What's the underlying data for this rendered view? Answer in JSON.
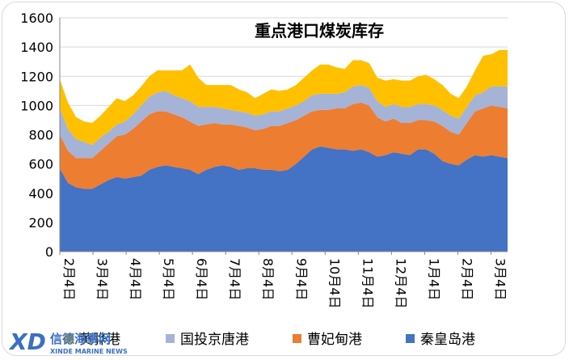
{
  "chart_data": {
    "type": "area",
    "stacked": true,
    "title": "重点港口煤炭库存",
    "ylim": [
      0,
      1600
    ],
    "yticks": [
      0,
      200,
      400,
      600,
      800,
      1000,
      1200,
      1400,
      1600
    ],
    "x_tick_labels": [
      "2月4日",
      "3月4日",
      "4月4日",
      "5月4日",
      "6月4日",
      "7月4日",
      "8月4日",
      "9月4日",
      "10月4日",
      "11月4日",
      "12月4日",
      "1月4日",
      "2月4日",
      "3月4日"
    ],
    "x_dates": [
      "2/4",
      "2/11",
      "2/18",
      "2/25",
      "3/4",
      "3/11",
      "3/18",
      "3/25",
      "4/4",
      "4/11",
      "4/18",
      "4/25",
      "5/4",
      "5/11",
      "5/18",
      "5/25",
      "6/4",
      "6/11",
      "6/18",
      "6/25",
      "7/4",
      "7/11",
      "7/18",
      "7/25",
      "8/4",
      "8/11",
      "8/18",
      "8/25",
      "9/4",
      "9/11",
      "9/18",
      "9/25",
      "10/4",
      "10/11",
      "10/18",
      "10/25",
      "11/4",
      "11/11",
      "11/18",
      "11/25",
      "12/4",
      "12/11",
      "12/18",
      "12/25",
      "1/4",
      "1/11",
      "1/18",
      "1/25",
      "2/4",
      "2/11",
      "2/18",
      "2/25",
      "3/4",
      "3/11",
      "3/18",
      "3/25"
    ],
    "series": [
      {
        "name": "秦皇岛港",
        "color": "#4472C4",
        "values": [
          570,
          470,
          440,
          430,
          430,
          460,
          490,
          510,
          500,
          510,
          520,
          560,
          580,
          590,
          580,
          570,
          560,
          530,
          560,
          580,
          590,
          580,
          560,
          570,
          570,
          560,
          560,
          550,
          560,
          600,
          650,
          700,
          720,
          710,
          700,
          700,
          690,
          700,
          680,
          650,
          660,
          680,
          670,
          660,
          700,
          700,
          670,
          620,
          600,
          590,
          630,
          660,
          650,
          660,
          650,
          640
        ]
      },
      {
        "name": "曹妃甸港",
        "color": "#ED7D31",
        "values": [
          230,
          220,
          200,
          210,
          210,
          230,
          250,
          280,
          300,
          330,
          370,
          380,
          380,
          370,
          360,
          350,
          330,
          330,
          310,
          300,
          280,
          290,
          300,
          280,
          260,
          280,
          300,
          310,
          320,
          300,
          280,
          260,
          250,
          260,
          280,
          280,
          320,
          320,
          320,
          270,
          230,
          230,
          210,
          220,
          200,
          200,
          220,
          240,
          220,
          210,
          250,
          300,
          330,
          340,
          340,
          340
        ]
      },
      {
        "name": "国投京唐港",
        "color": "#A5B3D7",
        "values": [
          180,
          150,
          130,
          110,
          90,
          90,
          80,
          80,
          90,
          100,
          110,
          120,
          130,
          140,
          130,
          130,
          140,
          130,
          120,
          110,
          110,
          100,
          100,
          100,
          100,
          100,
          100,
          100,
          100,
          100,
          100,
          110,
          110,
          110,
          100,
          110,
          120,
          120,
          120,
          110,
          100,
          100,
          110,
          110,
          110,
          110,
          110,
          110,
          110,
          110,
          110,
          110,
          110,
          130,
          140,
          150
        ]
      },
      {
        "name": "黄骅港",
        "color": "#FFC000",
        "values": [
          200,
          180,
          150,
          140,
          150,
          150,
          170,
          180,
          140,
          130,
          130,
          140,
          150,
          140,
          170,
          190,
          250,
          200,
          150,
          150,
          160,
          170,
          150,
          140,
          120,
          140,
          150,
          140,
          130,
          140,
          160,
          170,
          200,
          200,
          180,
          160,
          180,
          170,
          170,
          160,
          180,
          170,
          180,
          180,
          190,
          200,
          180,
          170,
          150,
          140,
          140,
          170,
          250,
          220,
          250,
          250
        ]
      }
    ],
    "legend_position": "bottom",
    "legend_order": [
      "黄骅港",
      "国投京唐港",
      "曹妃甸港",
      "秦皇岛港"
    ],
    "background": "#FFFFFF"
  },
  "watermark": {
    "cn": "信德海事网",
    "en": "XINDE MARINE NEWS",
    "mark": "XD"
  }
}
